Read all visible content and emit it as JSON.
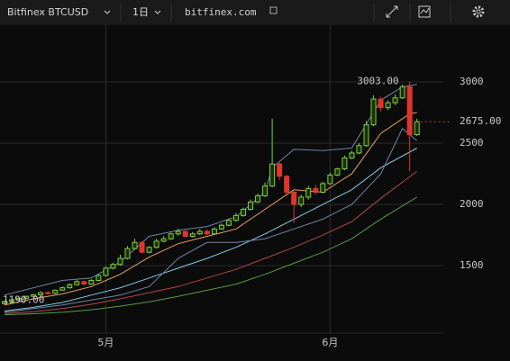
{
  "toolbar": {
    "symbol": "Bitfinex BTCUSD",
    "interval": "1日",
    "site": "bitfinex.com"
  },
  "chart_data": {
    "type": "candlestick",
    "categories": [
      null,
      null,
      null,
      null,
      null,
      null,
      null,
      null,
      null,
      null,
      null,
      null,
      null,
      null,
      "5月",
      null,
      null,
      null,
      null,
      null,
      null,
      null,
      null,
      null,
      null,
      null,
      null,
      null,
      null,
      null,
      null,
      null,
      null,
      null,
      null,
      null,
      null,
      null,
      null,
      null,
      null,
      null,
      null,
      null,
      null,
      "6月",
      null,
      null,
      null,
      null,
      null,
      null,
      null,
      null,
      null,
      null,
      null,
      null
    ],
    "open": [
      1190,
      1208,
      1222,
      1235,
      1250,
      1262,
      1280,
      1275,
      1300,
      1320,
      1345,
      1370,
      1350,
      1380,
      1420,
      1480,
      1510,
      1560,
      1640,
      1690,
      1610,
      1650,
      1700,
      1720,
      1760,
      1780,
      1740,
      1760,
      1780,
      1760,
      1800,
      1830,
      1870,
      1910,
      1960,
      2020,
      2070,
      2150,
      2330,
      2230,
      2100,
      2000,
      2060,
      2130,
      2100,
      2170,
      2240,
      2290,
      2380,
      2420,
      2480,
      2650,
      2860,
      2790,
      2830,
      2870,
      2960,
      2570
    ],
    "high": [
      1215,
      1228,
      1240,
      1255,
      1268,
      1290,
      1292,
      1305,
      1330,
      1355,
      1385,
      1378,
      1390,
      1430,
      1495,
      1525,
      1590,
      1660,
      1720,
      1700,
      1660,
      1720,
      1740,
      1770,
      1800,
      1795,
      1775,
      1800,
      1795,
      1815,
      1845,
      1885,
      1930,
      1975,
      2040,
      2090,
      2180,
      2700,
      2340,
      2240,
      2110,
      2080,
      2150,
      2160,
      2185,
      2260,
      2300,
      2400,
      2440,
      2500,
      2680,
      2890,
      2880,
      2850,
      2900,
      2980,
      3003,
      2700
    ],
    "low": [
      1190,
      1200,
      1215,
      1228,
      1240,
      1255,
      1265,
      1268,
      1295,
      1312,
      1338,
      1340,
      1345,
      1372,
      1412,
      1470,
      1500,
      1550,
      1630,
      1600,
      1600,
      1640,
      1690,
      1710,
      1745,
      1730,
      1730,
      1750,
      1750,
      1755,
      1792,
      1822,
      1860,
      1900,
      1950,
      2010,
      2060,
      2140,
      2200,
      2080,
      1850,
      1980,
      2040,
      2080,
      2090,
      2160,
      2230,
      2280,
      2370,
      2410,
      2470,
      2640,
      2760,
      2770,
      2810,
      2860,
      2270,
      2560
    ],
    "close": [
      1208,
      1222,
      1235,
      1250,
      1262,
      1280,
      1275,
      1300,
      1320,
      1345,
      1370,
      1350,
      1380,
      1420,
      1480,
      1510,
      1560,
      1640,
      1690,
      1610,
      1650,
      1700,
      1720,
      1760,
      1780,
      1740,
      1760,
      1780,
      1760,
      1800,
      1830,
      1870,
      1910,
      1960,
      2020,
      2070,
      2150,
      2330,
      2230,
      2100,
      2000,
      2060,
      2130,
      2100,
      2170,
      2240,
      2290,
      2380,
      2420,
      2480,
      2650,
      2860,
      2790,
      2830,
      2870,
      2960,
      2570,
      2675
    ],
    "up_color": "#7fcf3a",
    "down_color": "#e0352b",
    "overlays": [
      {
        "color": "#e8a060",
        "x": [
          0,
          4,
          8,
          12,
          16,
          20,
          24,
          28,
          32,
          36,
          40,
          44,
          48,
          52,
          56,
          57
        ],
        "values": [
          1180,
          1230,
          1270,
          1330,
          1430,
          1570,
          1680,
          1740,
          1800,
          1960,
          2120,
          2100,
          2250,
          2580,
          2740,
          2750
        ]
      },
      {
        "color": "#7ecbe8",
        "x": [
          0,
          4,
          8,
          12,
          16,
          20,
          24,
          28,
          32,
          36,
          40,
          44,
          48,
          52,
          57
        ],
        "values": [
          1130,
          1160,
          1200,
          1260,
          1320,
          1400,
          1480,
          1560,
          1650,
          1760,
          1880,
          2000,
          2120,
          2300,
          2460
        ]
      },
      {
        "color": "#b04848",
        "x": [
          0,
          4,
          8,
          12,
          16,
          20,
          24,
          28,
          32,
          36,
          40,
          44,
          48,
          52,
          57
        ],
        "values": [
          1110,
          1125,
          1150,
          1185,
          1230,
          1280,
          1330,
          1400,
          1470,
          1560,
          1650,
          1750,
          1860,
          2050,
          2270
        ]
      },
      {
        "color": "#5a9a40",
        "x": [
          0,
          4,
          8,
          12,
          16,
          20,
          24,
          28,
          32,
          36,
          40,
          44,
          48,
          52,
          57
        ],
        "values": [
          1100,
          1108,
          1120,
          1140,
          1170,
          1205,
          1250,
          1300,
          1350,
          1430,
          1520,
          1610,
          1720,
          1880,
          2060
        ]
      },
      {
        "color": "#6f84a8",
        "x": [
          0,
          8,
          12,
          16,
          20,
          24,
          28,
          32,
          36,
          37,
          40,
          44,
          48,
          52,
          55,
          57
        ],
        "values": [
          1260,
          1380,
          1400,
          1530,
          1740,
          1790,
          1820,
          1900,
          2100,
          2300,
          2450,
          2440,
          2460,
          2850,
          2960,
          2980
        ]
      },
      {
        "color": "#6f84a8",
        "x": [
          0,
          8,
          16,
          20,
          24,
          28,
          32,
          36,
          40,
          44,
          48,
          52,
          55,
          57
        ],
        "values": [
          1120,
          1180,
          1260,
          1330,
          1560,
          1690,
          1690,
          1720,
          1800,
          1880,
          2000,
          2250,
          2620,
          2520
        ]
      }
    ],
    "ylim": [
      950,
      3463
    ],
    "yticks": [
      1500,
      2000,
      2500,
      3000
    ],
    "grid": true,
    "annotations": [
      {
        "value": 3003,
        "label": "3003.00",
        "x": 56
      },
      {
        "value": 1190,
        "label": "1190.00",
        "x": 0
      }
    ],
    "last_price": {
      "value": 2675,
      "label": "2675.00",
      "color": "#e0352b"
    }
  }
}
